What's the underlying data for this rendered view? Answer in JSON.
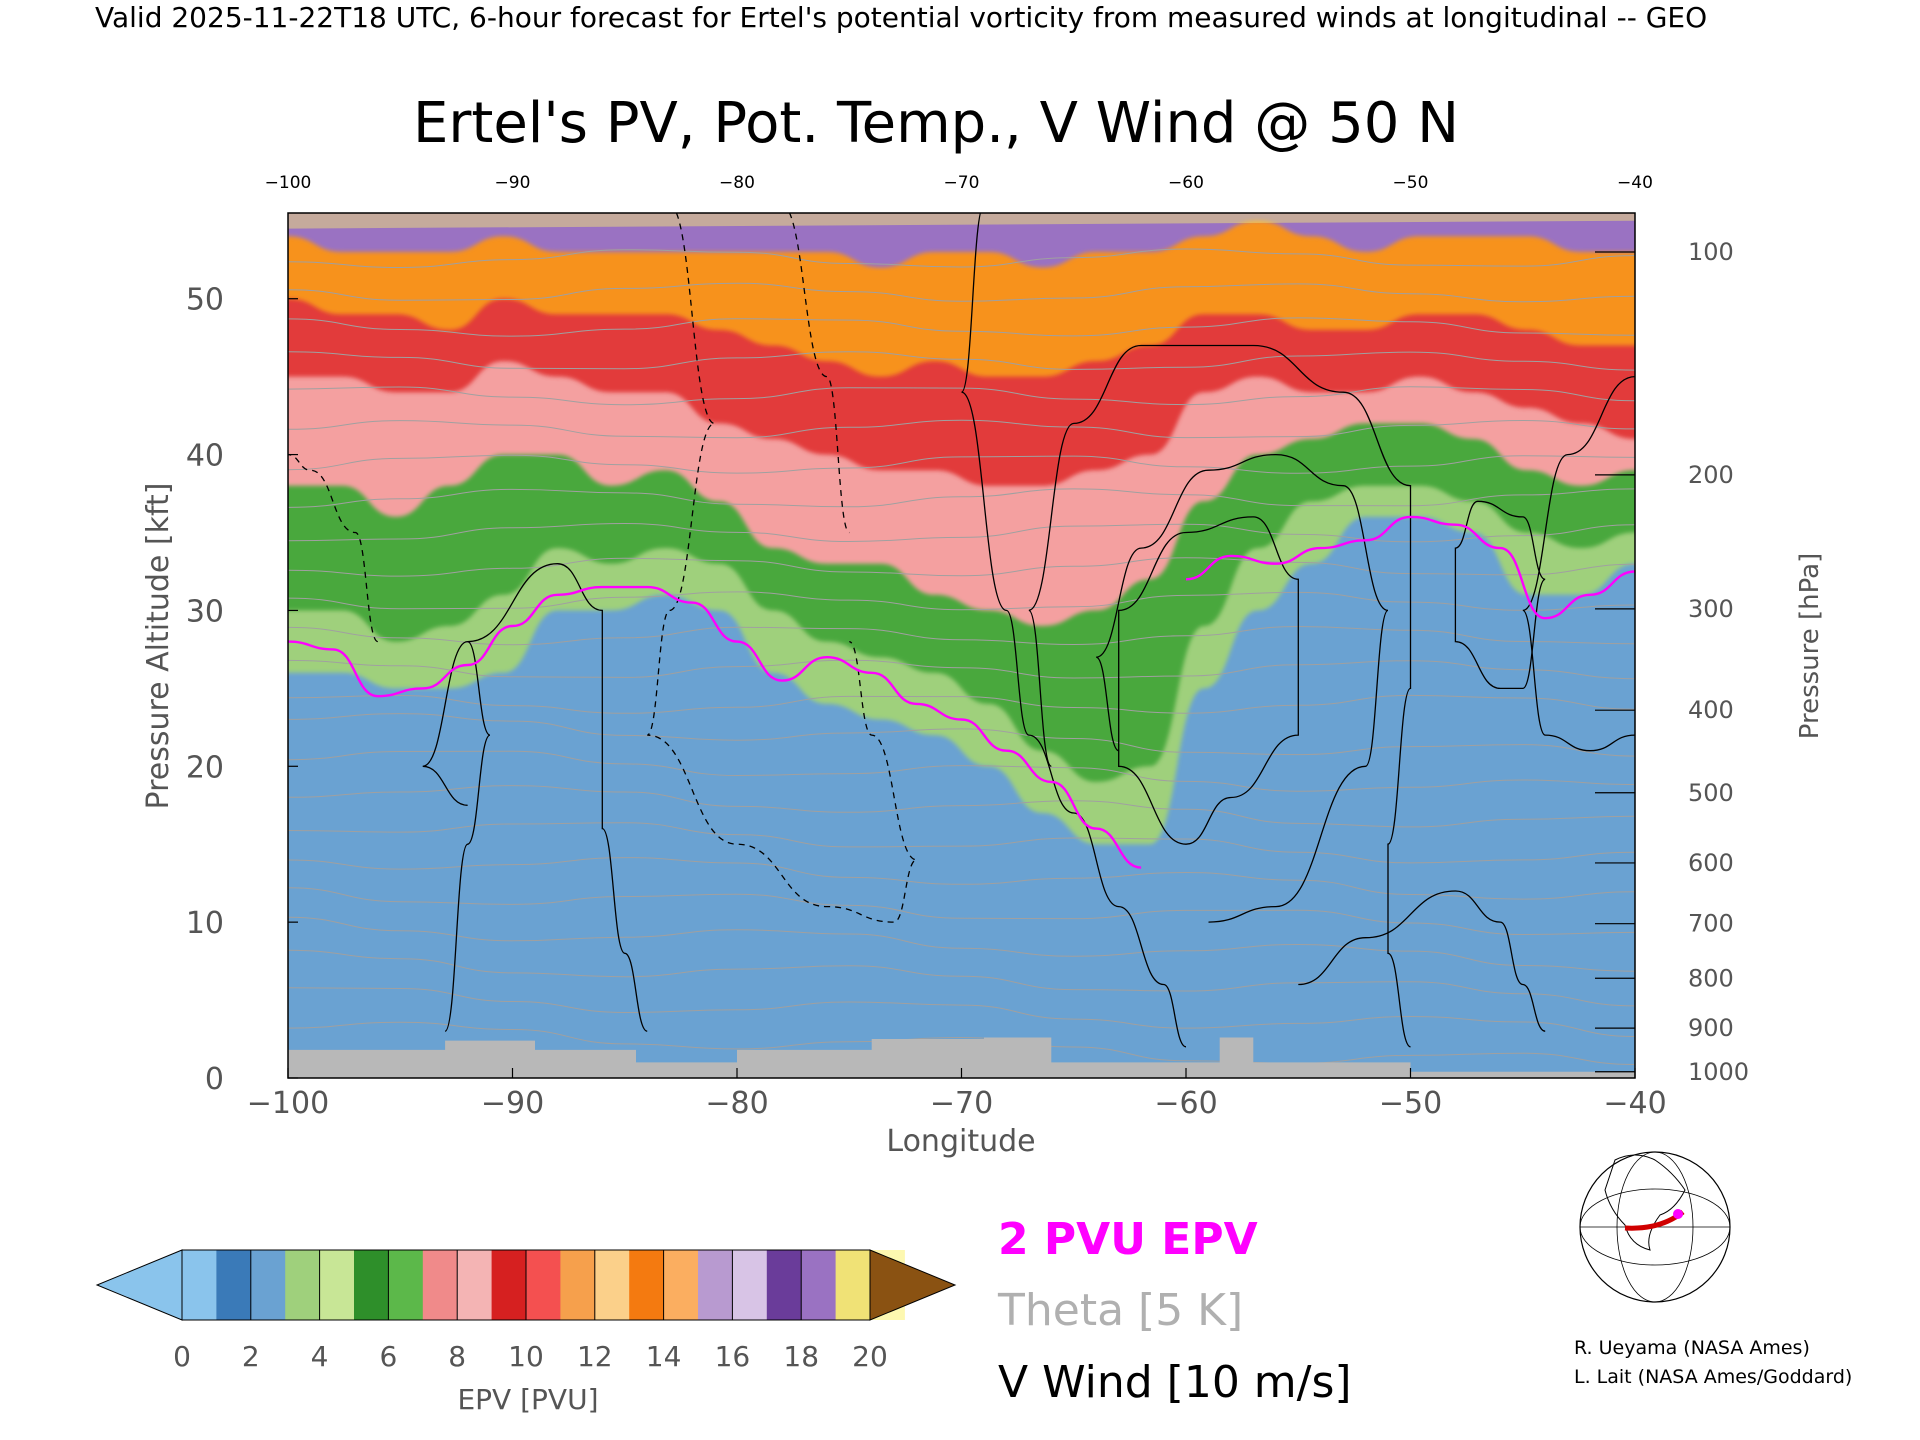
{
  "header": {
    "valid_text": "Valid 2025-11-22T18 UTC, 6-hour forecast for Ertel's potential vorticity from measured winds at longitudinal -- GEO"
  },
  "chart_data": {
    "type": "heatmap",
    "title": "Ertel's PV, Pot. Temp., V Wind @ 50 N",
    "xlabel": "Longitude",
    "ylabel": "Pressure Altitude [kft]",
    "y2label": "Pressure [hPa]",
    "xlim": [
      -100,
      -40
    ],
    "ylim": [
      0,
      55.5
    ],
    "x_ticks": [
      "−100",
      "−90",
      "−80",
      "−70",
      "−60",
      "−50",
      "−40"
    ],
    "x_ticks_top": [
      "−100",
      "−90",
      "−80",
      "−70",
      "−60",
      "−50",
      "−40"
    ],
    "y_ticks": [
      "0",
      "10",
      "20",
      "30",
      "40",
      "50"
    ],
    "pressure_ticks": [
      {
        "label": "100",
        "alt": 53.0
      },
      {
        "label": "200",
        "alt": 38.7
      },
      {
        "label": "300",
        "alt": 30.1
      },
      {
        "label": "400",
        "alt": 23.6
      },
      {
        "label": "500",
        "alt": 18.3
      },
      {
        "label": "600",
        "alt": 13.8
      },
      {
        "label": "700",
        "alt": 9.9
      },
      {
        "label": "800",
        "alt": 6.4
      },
      {
        "label": "900",
        "alt": 3.2
      },
      {
        "label": "1000",
        "alt": 0.4
      }
    ],
    "pv_bands": [
      {
        "pv": 0,
        "alt": [
          26,
          26,
          25,
          25,
          26,
          30,
          30,
          31,
          30,
          26,
          24,
          23,
          22,
          20,
          17,
          15,
          15,
          25,
          30,
          33,
          36,
          36,
          35,
          31,
          31,
          33
        ]
      },
      {
        "pv": 2,
        "alt": [
          30,
          30,
          28,
          29,
          31,
          34,
          33,
          34,
          33,
          30,
          28,
          27,
          26,
          24,
          21,
          19,
          20,
          29,
          34,
          37,
          38,
          38,
          37,
          35,
          34,
          35
        ]
      },
      {
        "pv": 4,
        "alt": [
          38,
          38,
          36,
          38,
          40,
          40,
          38,
          39,
          37,
          34,
          33,
          33,
          31,
          30,
          29,
          30,
          32,
          37,
          40,
          41,
          42,
          42,
          41,
          39,
          38,
          39
        ]
      },
      {
        "pv": 6,
        "alt": [
          45,
          45,
          44,
          44,
          46,
          45,
          44,
          44,
          42,
          41,
          40,
          39,
          39,
          38,
          38,
          39,
          40,
          44,
          45,
          44,
          44,
          45,
          44,
          43,
          42,
          41
        ]
      },
      {
        "pv": 10,
        "alt": [
          50,
          49,
          49,
          48,
          50,
          49,
          49,
          49,
          48,
          47,
          46,
          45,
          46,
          45,
          45,
          46,
          47,
          49,
          49,
          48,
          48,
          49,
          49,
          48,
          47,
          47
        ]
      },
      {
        "pv": 14,
        "alt": [
          54,
          53,
          53,
          53,
          54,
          53,
          53,
          53,
          53,
          53,
          53,
          52,
          53,
          53,
          52,
          53,
          53,
          54,
          55,
          54,
          53,
          54,
          54,
          54,
          53,
          53
        ]
      }
    ],
    "pv2_contour": {
      "x": [
        -100,
        -98,
        -96,
        -94,
        -92,
        -90,
        -88,
        -86,
        -84,
        -82,
        -80,
        -78,
        -76,
        -74,
        -72,
        -70,
        -68,
        -66,
        -64,
        -62,
        -60,
        -58,
        -56,
        -54,
        -52,
        -50,
        -48,
        -46,
        -44,
        -42,
        -40
      ],
      "alt": [
        28,
        27.5,
        24.5,
        25,
        26.5,
        29,
        31,
        31.5,
        31.5,
        30.5,
        28,
        25.5,
        27,
        26,
        24,
        23,
        21,
        19,
        16,
        13.5,
        32,
        33.5,
        33,
        34,
        34.5,
        36,
        35.5,
        34,
        29.5,
        31,
        32.5
      ]
    },
    "colorbar": {
      "label": "EPV [PVU]",
      "ticks": [
        "0",
        "2",
        "4",
        "6",
        "8",
        "10",
        "12",
        "14",
        "16",
        "18",
        "20"
      ],
      "colors": [
        "#8ac4ec",
        "#3a7ab8",
        "#6aa2d2",
        "#9fd07c",
        "#c8e696",
        "#2e8f2a",
        "#5cb84a",
        "#f08a8a",
        "#f4b4b4",
        "#d62020",
        "#f45050",
        "#f6a04c",
        "#fbd08a",
        "#f47a10",
        "#fbae60",
        "#b89ad0",
        "#d8c4e6",
        "#6a3c9a",
        "#9a72c2",
        "#f0e276",
        "#fdf8b0"
      ],
      "under_color": "#8ac4ec",
      "over_color": "#8a5212"
    },
    "legend": {
      "pv2": "2 PVU EPV",
      "theta": "Theta [5 K]",
      "vwind": "V Wind [10 m/s]"
    },
    "credits": [
      "R. Ueyama (NASA Ames)",
      "L. Lait (NASA Ames/Goddard)"
    ],
    "colors": {
      "pv2_line": "#ff00ff",
      "theta_line": "#a0a0a0",
      "terrain": "#b8b8b8"
    }
  }
}
